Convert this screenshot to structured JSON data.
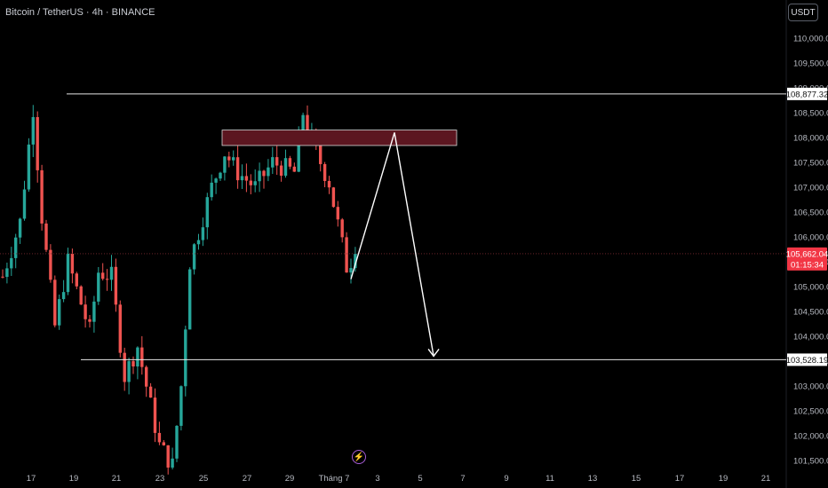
{
  "header": {
    "title": "Bitcoin / TetherUS · 4h · BINANCE",
    "unit_button": "USDT"
  },
  "chart_data": {
    "type": "candlestick",
    "ylim": [
      101200,
      110400
    ],
    "y_ticks": [
      {
        "value": 110000,
        "label": "110,000.00"
      },
      {
        "value": 109500,
        "label": "109,500.00"
      },
      {
        "value": 109000,
        "label": "109,000.00"
      },
      {
        "value": 108500,
        "label": "108,500.00"
      },
      {
        "value": 108000,
        "label": "108,000.00"
      },
      {
        "value": 107500,
        "label": "107,500.00"
      },
      {
        "value": 107000,
        "label": "107,000.00"
      },
      {
        "value": 106500,
        "label": "106,500.00"
      },
      {
        "value": 106000,
        "label": "106,000.00"
      },
      {
        "value": 105500,
        "label": "105,500.00"
      },
      {
        "value": 105000,
        "label": "105,000.00"
      },
      {
        "value": 104500,
        "label": "104,500.00"
      },
      {
        "value": 104000,
        "label": "104,000.00"
      },
      {
        "value": 103500,
        "label": "103,500.00"
      },
      {
        "value": 103000,
        "label": "103,000.00"
      },
      {
        "value": 102500,
        "label": "102,500.00"
      },
      {
        "value": 102000,
        "label": "102,000.00"
      },
      {
        "value": 101500,
        "label": "101,500.00"
      }
    ],
    "x_ticks": [
      "17",
      "19",
      "21",
      "23",
      "25",
      "27",
      "29",
      "Tháng 7",
      "3",
      "5",
      "7",
      "9",
      "11",
      "13",
      "15",
      "17",
      "19",
      "21"
    ],
    "levels": [
      {
        "name": "resistance",
        "value": 108877.32,
        "label": "108,877.32"
      },
      {
        "name": "target",
        "value": 103528.19,
        "label": "103,528.19"
      }
    ],
    "current_price": {
      "value": 105662.04,
      "label": "105,662.04",
      "countdown": "01:15:34"
    },
    "zone": {
      "from": 107840,
      "to": 108150
    },
    "projection": [
      {
        "candle": 80,
        "price": 105150
      },
      {
        "candle": 90,
        "price": 108100
      },
      {
        "candle": 99,
        "price": 103600
      }
    ],
    "colors": {
      "up": "#26a69a",
      "down": "#ef5350",
      "zone": "#5c1620",
      "price_tag": "#f23645"
    }
  }
}
